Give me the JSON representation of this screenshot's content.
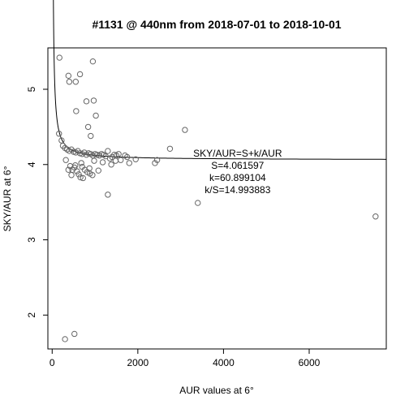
{
  "chart_data": {
    "type": "scatter",
    "title": "#1131 @ 440nm from 2018-07-01 to 2018-10-01",
    "xlabel": "AUR values at 6°",
    "ylabel": "SKY/AUR at 6°",
    "xlim": [
      -100,
      7800
    ],
    "ylim": [
      1.55,
      5.55
    ],
    "xticks": [
      0,
      2000,
      4000,
      6000
    ],
    "yticks": [
      2,
      3,
      4,
      5
    ],
    "xtick_labels": [
      "0",
      "2000",
      "4000",
      "6000"
    ],
    "ytick_labels": [
      "2",
      "3",
      "4",
      "5"
    ],
    "grid": false,
    "legend": "none",
    "points": [
      [
        170,
        5.42
      ],
      [
        380,
        5.18
      ],
      [
        400,
        5.1
      ],
      [
        550,
        5.1
      ],
      [
        650,
        5.2
      ],
      [
        950,
        5.37
      ],
      [
        800,
        4.84
      ],
      [
        970,
        4.85
      ],
      [
        560,
        4.71
      ],
      [
        840,
        4.5
      ],
      [
        1020,
        4.65
      ],
      [
        900,
        4.38
      ],
      [
        160,
        4.41
      ],
      [
        220,
        4.32
      ],
      [
        250,
        4.25
      ],
      [
        300,
        4.22
      ],
      [
        350,
        4.2
      ],
      [
        400,
        4.18
      ],
      [
        450,
        4.2
      ],
      [
        500,
        4.17
      ],
      [
        550,
        4.16
      ],
      [
        600,
        4.18
      ],
      [
        650,
        4.15
      ],
      [
        700,
        4.14
      ],
      [
        750,
        4.16
      ],
      [
        800,
        4.13
      ],
      [
        850,
        4.15
      ],
      [
        900,
        4.14
      ],
      [
        950,
        4.12
      ],
      [
        1000,
        4.14
      ],
      [
        1050,
        4.13
      ],
      [
        1100,
        4.12
      ],
      [
        1150,
        4.14
      ],
      [
        1200,
        4.13
      ],
      [
        1250,
        4.11
      ],
      [
        1300,
        4.18
      ],
      [
        1350,
        4.08
      ],
      [
        1400,
        4.1
      ],
      [
        1450,
        4.13
      ],
      [
        1500,
        4.12
      ],
      [
        1550,
        4.14
      ],
      [
        1600,
        4.06
      ],
      [
        1700,
        4.12
      ],
      [
        1750,
        4.1
      ],
      [
        1800,
        4.02
      ],
      [
        1950,
        4.07
      ],
      [
        2400,
        4.02
      ],
      [
        2450,
        4.06
      ],
      [
        2750,
        4.21
      ],
      [
        3100,
        4.46
      ],
      [
        3400,
        3.49
      ],
      [
        7550,
        3.31
      ],
      [
        320,
        4.06
      ],
      [
        420,
        3.98
      ],
      [
        470,
        3.93
      ],
      [
        520,
        3.96
      ],
      [
        580,
        3.91
      ],
      [
        620,
        3.87
      ],
      [
        660,
        3.83
      ],
      [
        700,
        3.97
      ],
      [
        760,
        3.93
      ],
      [
        820,
        3.9
      ],
      [
        880,
        3.88
      ],
      [
        940,
        3.86
      ],
      [
        980,
        4.05
      ],
      [
        1080,
        3.92
      ],
      [
        1180,
        4.03
      ],
      [
        1300,
        3.6
      ],
      [
        1380,
        4.0
      ],
      [
        1480,
        4.05
      ],
      [
        450,
        3.86
      ],
      [
        540,
        3.99
      ],
      [
        680,
        4.02
      ],
      [
        380,
        3.93
      ],
      [
        720,
        3.82
      ],
      [
        870,
        3.95
      ],
      [
        300,
        1.68
      ],
      [
        520,
        1.75
      ]
    ],
    "fit": {
      "S": 4.061597,
      "k": 60.899104,
      "x_from": 15,
      "x_to": 7800
    },
    "annotation": {
      "x": 4330,
      "lines": [
        "SKY/AUR=S+k/AUR",
        "S=4.061597",
        "k=60.899104",
        "k/S=14.993883"
      ]
    }
  }
}
